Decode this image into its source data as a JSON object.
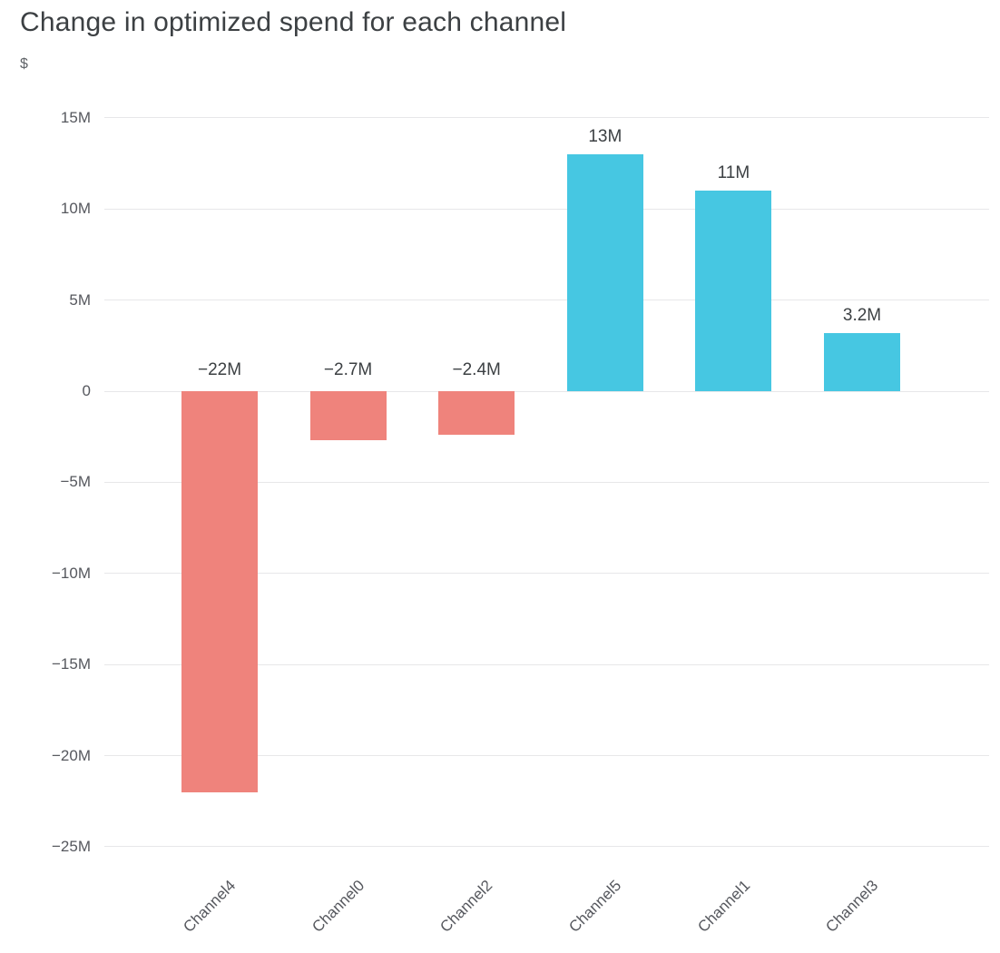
{
  "chart_data": {
    "type": "bar",
    "title": "Change in optimized spend for each channel",
    "ylabel": "$",
    "xlabel": "",
    "categories": [
      "Channel4",
      "Channel0",
      "Channel2",
      "Channel5",
      "Channel1",
      "Channel3"
    ],
    "values": [
      -22,
      -2.7,
      -2.4,
      13,
      11,
      3.2
    ],
    "value_unit": "M",
    "value_labels": [
      "−22M",
      "−2.7M",
      "−2.4M",
      "13M",
      "11M",
      "3.2M"
    ],
    "y_ticks": [
      15,
      10,
      5,
      0,
      -5,
      -10,
      -15,
      -20,
      -25
    ],
    "y_tick_labels": [
      "15M",
      "10M",
      "5M",
      "0",
      "−5M",
      "−10M",
      "−15M",
      "−20M",
      "−25M"
    ],
    "ylim": [
      -25,
      15
    ],
    "grid": true,
    "legend_position": "none",
    "colors": {
      "positive_bar": "#46C7E2",
      "negative_bar": "#EF837C",
      "title_text": "#3C4043",
      "axis_text": "#56585E",
      "value_text": "#3C4043",
      "gridline": "#E7E7E9",
      "background": "#FFFFFF"
    }
  }
}
